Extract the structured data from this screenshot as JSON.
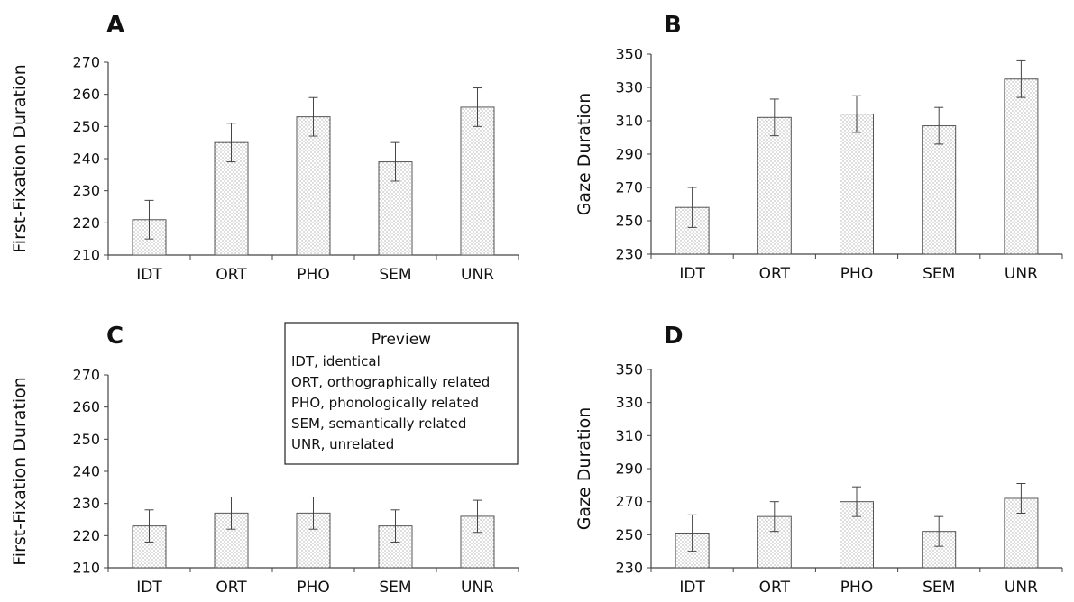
{
  "chart_data": [
    {
      "panel": "A",
      "type": "bar",
      "categories": [
        "IDT",
        "ORT",
        "PHO",
        "SEM",
        "UNR"
      ],
      "values": [
        221,
        245,
        253,
        239,
        256
      ],
      "error": [
        6,
        6,
        6,
        6,
        6
      ],
      "ylabel": "First-Fixation Duration",
      "ylim": [
        210,
        270
      ],
      "yticks": [
        210,
        220,
        230,
        240,
        250,
        260,
        270
      ],
      "grid": false
    },
    {
      "panel": "B",
      "type": "bar",
      "categories": [
        "IDT",
        "ORT",
        "PHO",
        "SEM",
        "UNR"
      ],
      "values": [
        258,
        312,
        314,
        307,
        335
      ],
      "error": [
        12,
        11,
        11,
        11,
        11
      ],
      "ylabel": "Gaze Duration",
      "ylim": [
        230,
        350
      ],
      "yticks": [
        230,
        250,
        270,
        290,
        310,
        330,
        350
      ],
      "grid": false
    },
    {
      "panel": "C",
      "type": "bar",
      "categories": [
        "IDT",
        "ORT",
        "PHO",
        "SEM",
        "UNR"
      ],
      "values": [
        223,
        227,
        227,
        223,
        226
      ],
      "error": [
        5,
        5,
        5,
        5,
        5
      ],
      "ylabel": "First-Fixation Duration",
      "ylim": [
        210,
        270
      ],
      "yticks": [
        210,
        220,
        230,
        240,
        250,
        260,
        270
      ],
      "grid": false,
      "legend": {
        "title": "Preview",
        "items": [
          "IDT, identical",
          "ORT, orthographically related",
          "PHO, phonologically related",
          "SEM, semantically related",
          "UNR, unrelated"
        ],
        "placement": "top-right"
      }
    },
    {
      "panel": "D",
      "type": "bar",
      "categories": [
        "IDT",
        "ORT",
        "PHO",
        "SEM",
        "UNR"
      ],
      "values": [
        251,
        261,
        270,
        252,
        272
      ],
      "error": [
        11,
        9,
        9,
        9,
        9
      ],
      "ylabel": "Gaze Duration",
      "ylim": [
        230,
        350
      ],
      "yticks": [
        230,
        250,
        270,
        290,
        310,
        330,
        350
      ],
      "grid": false
    }
  ]
}
